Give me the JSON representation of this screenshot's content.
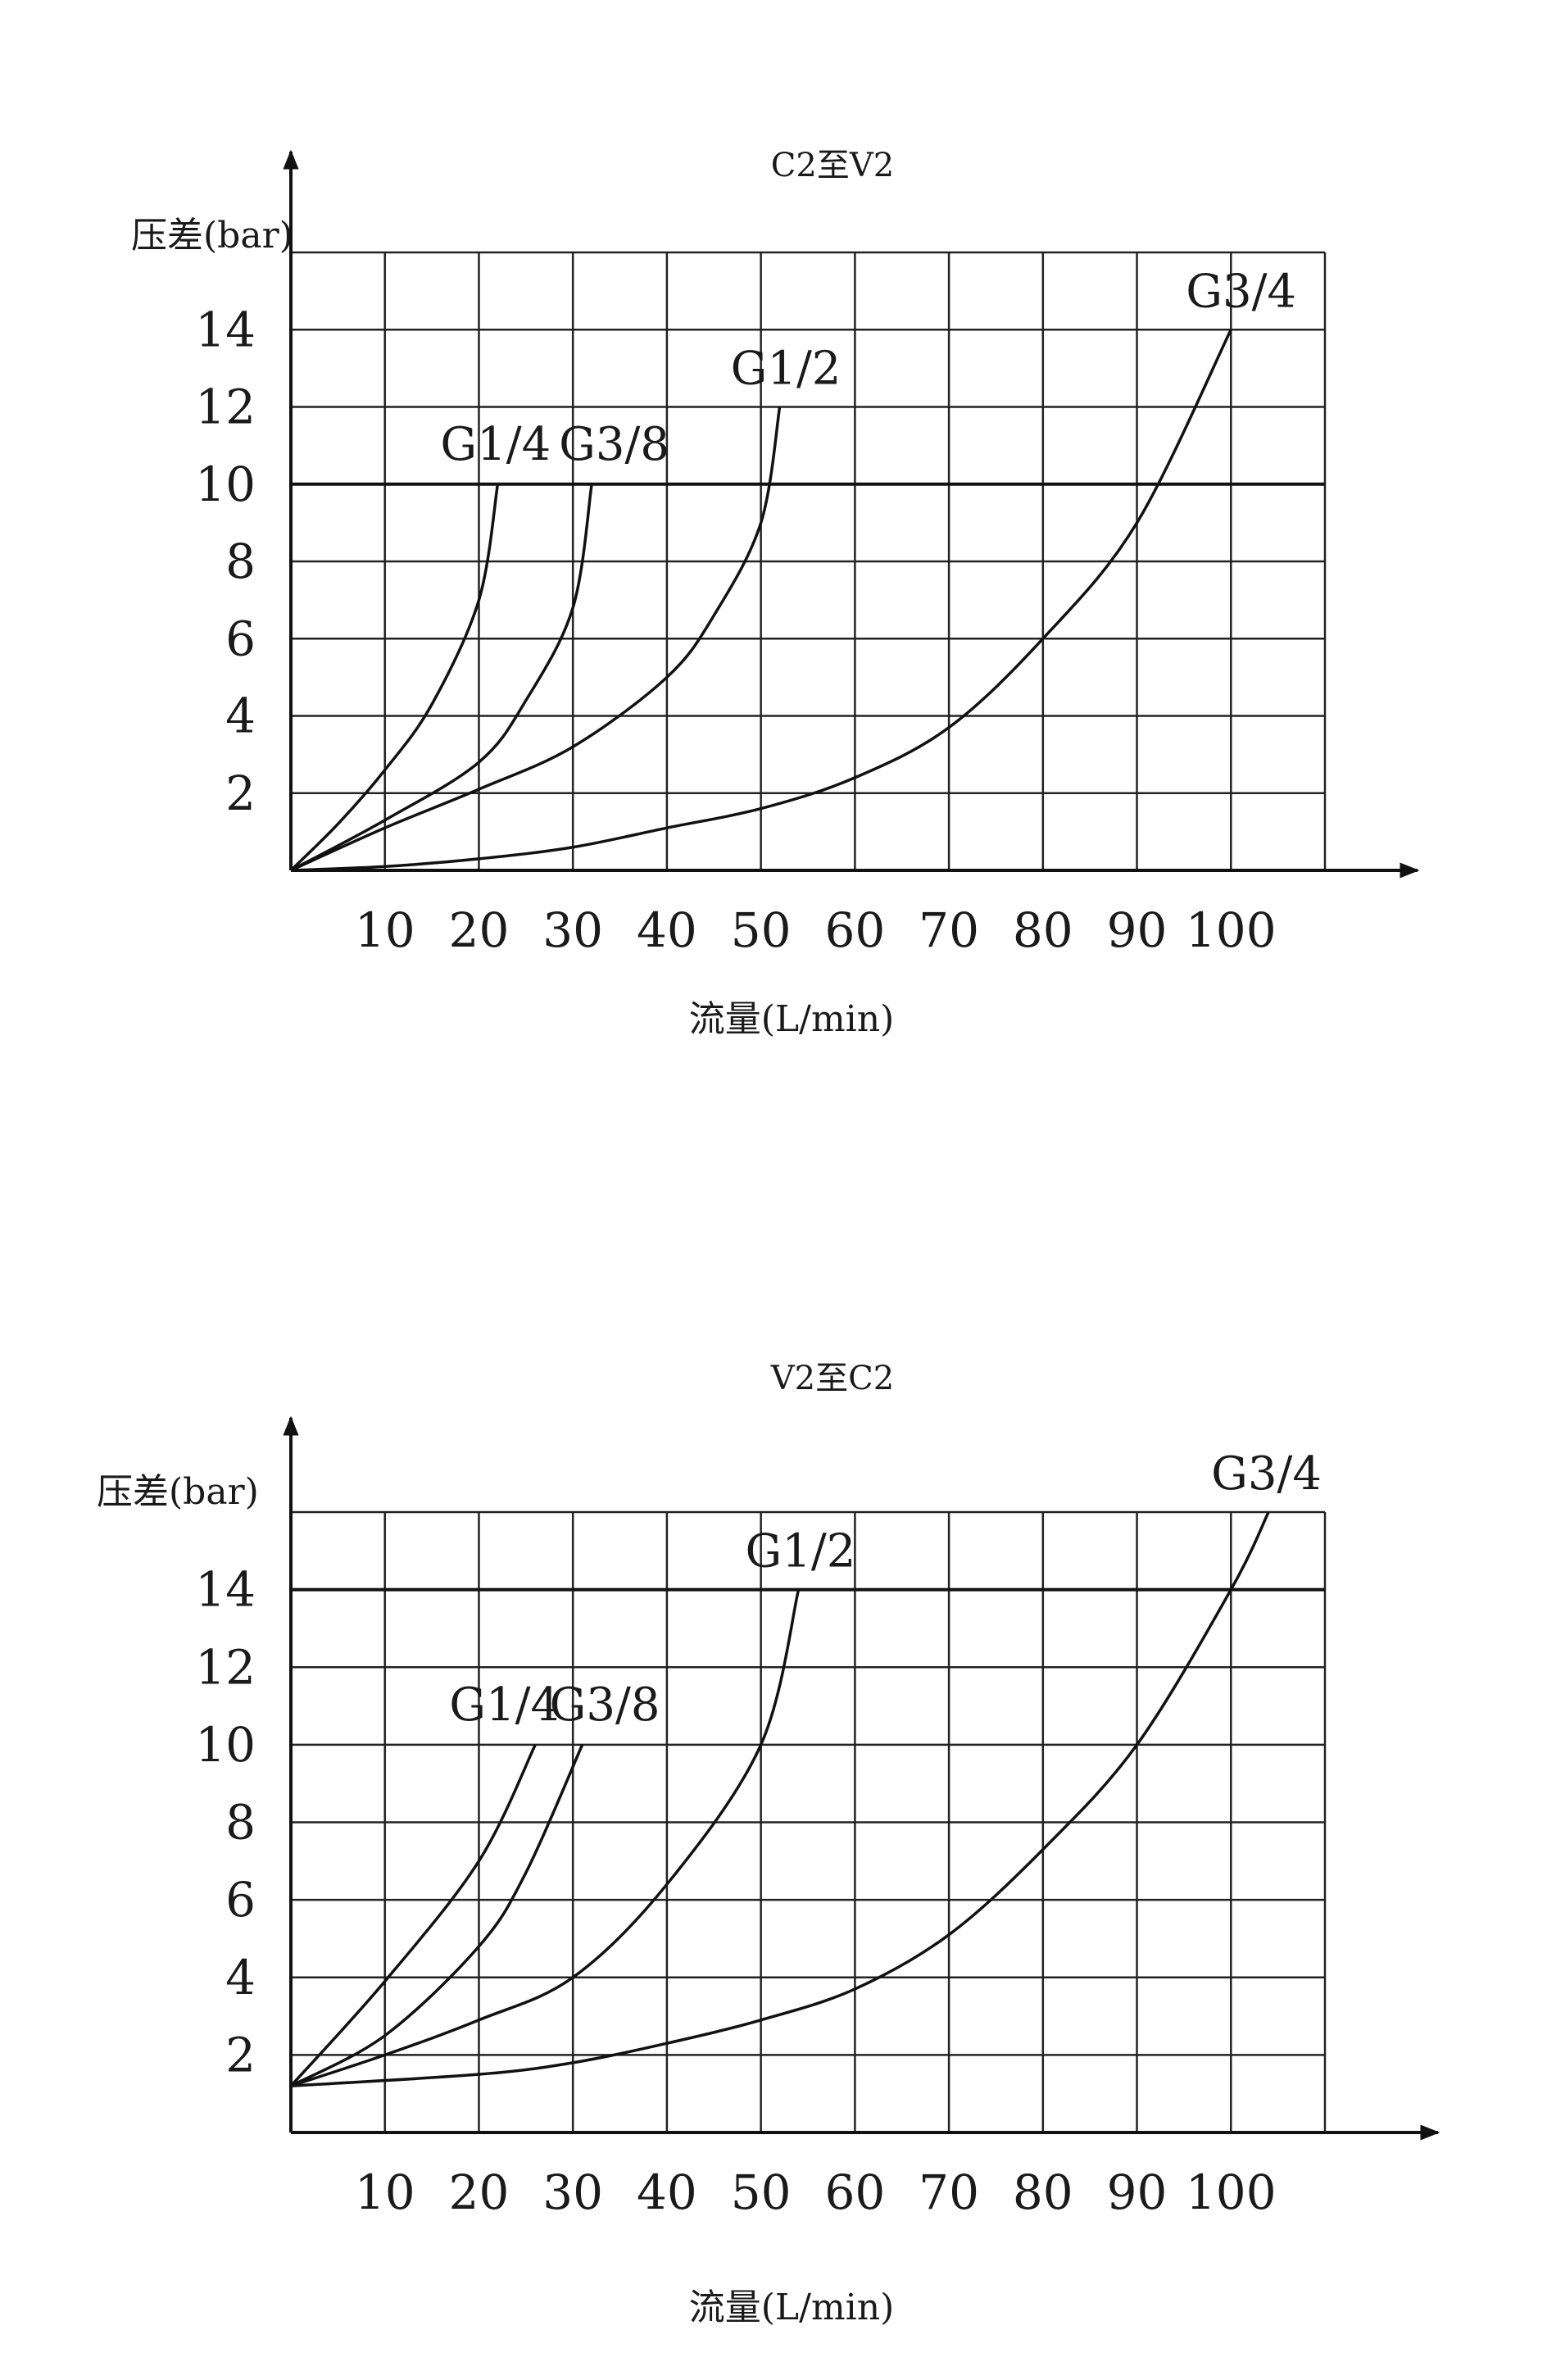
{
  "chart_data": [
    {
      "type": "line",
      "title": "C2至V2",
      "xlabel": "流量(L/min)",
      "ylabel": "压差(bar)",
      "x_ticks": [
        10,
        20,
        30,
        40,
        50,
        60,
        70,
        80,
        90,
        100
      ],
      "y_ticks": [
        2,
        4,
        6,
        8,
        10,
        12,
        14
      ],
      "xlim": [
        0,
        110
      ],
      "ylim": [
        0,
        16
      ],
      "grid": true,
      "series": [
        {
          "name": "G1/4",
          "x": [
            0,
            5,
            10,
            15,
            20,
            22
          ],
          "y": [
            0,
            1.2,
            2.6,
            4.3,
            7,
            10
          ]
        },
        {
          "name": "G3/8",
          "x": [
            0,
            10,
            20,
            25,
            30,
            32
          ],
          "y": [
            0,
            1.3,
            2.8,
            4.4,
            6.8,
            10
          ]
        },
        {
          "name": "G1/2",
          "x": [
            0,
            10,
            20,
            30,
            40,
            45,
            50,
            52
          ],
          "y": [
            0,
            1.1,
            2.1,
            3.2,
            5,
            6.6,
            9,
            12
          ]
        },
        {
          "name": "G3/4",
          "x": [
            0,
            10,
            20,
            30,
            40,
            50,
            60,
            70,
            80,
            90,
            100
          ],
          "y": [
            0,
            0.1,
            0.3,
            0.6,
            1.1,
            1.6,
            2.4,
            3.7,
            6,
            9,
            14
          ]
        }
      ]
    },
    {
      "type": "line",
      "title": "V2至C2",
      "xlabel": "流量(L/min)",
      "ylabel": "压差(bar)",
      "x_ticks": [
        10,
        20,
        30,
        40,
        50,
        60,
        70,
        80,
        90,
        100
      ],
      "y_ticks": [
        2,
        4,
        6,
        8,
        10,
        12,
        14
      ],
      "xlim": [
        0,
        110
      ],
      "ylim": [
        0,
        16
      ],
      "grid": true,
      "series": [
        {
          "name": "G1/4",
          "x": [
            0,
            10,
            20,
            26
          ],
          "y": [
            1.2,
            3.9,
            7,
            10
          ]
        },
        {
          "name": "G3/8",
          "x": [
            0,
            10,
            20,
            25,
            31
          ],
          "y": [
            1.2,
            2.5,
            4.8,
            6.7,
            10
          ]
        },
        {
          "name": "G1/2",
          "x": [
            0,
            10,
            20,
            30,
            40,
            50,
            54
          ],
          "y": [
            1.2,
            2,
            2.9,
            4,
            6.4,
            10,
            14
          ]
        },
        {
          "name": "G3/4",
          "x": [
            0,
            20,
            30,
            40,
            50,
            60,
            70,
            80,
            90,
            100,
            104
          ],
          "y": [
            1.2,
            1.5,
            1.8,
            2.3,
            2.9,
            3.7,
            5.1,
            7.3,
            10,
            14,
            16
          ]
        }
      ]
    }
  ]
}
